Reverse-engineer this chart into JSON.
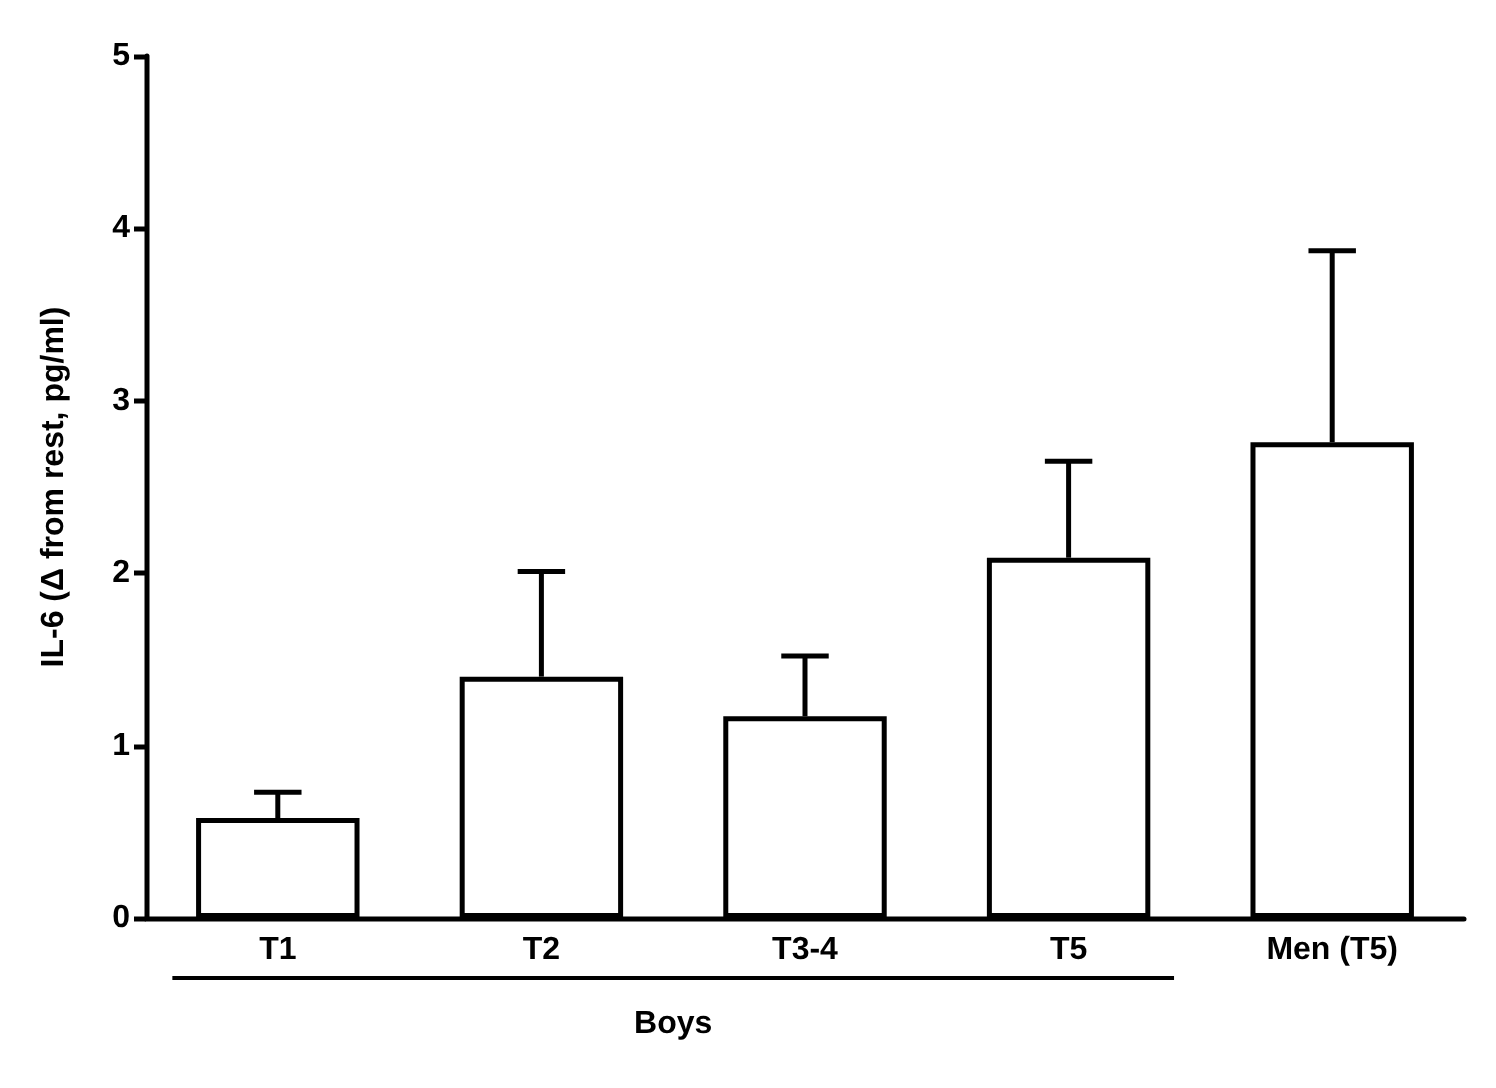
{
  "chart_data": {
    "type": "bar",
    "ylabel": "IL-6 (Δ from rest, pg/ml)",
    "categories": [
      "T1",
      "T2",
      "T3-4",
      "T5",
      "Men (T5)"
    ],
    "values": [
      0.58,
      1.4,
      1.17,
      2.09,
      2.76
    ],
    "errors": [
      [
        0.58,
        0.73
      ],
      [
        1.4,
        2.01
      ],
      [
        1.17,
        1.52
      ],
      [
        2.09,
        2.65
      ],
      [
        2.76,
        3.87
      ]
    ],
    "color": "#ffffff",
    "ylim": [
      0,
      5
    ],
    "yticks": [
      0,
      1,
      2,
      3,
      4,
      5
    ],
    "grid": false,
    "annotations": [
      "Boys"
    ]
  }
}
